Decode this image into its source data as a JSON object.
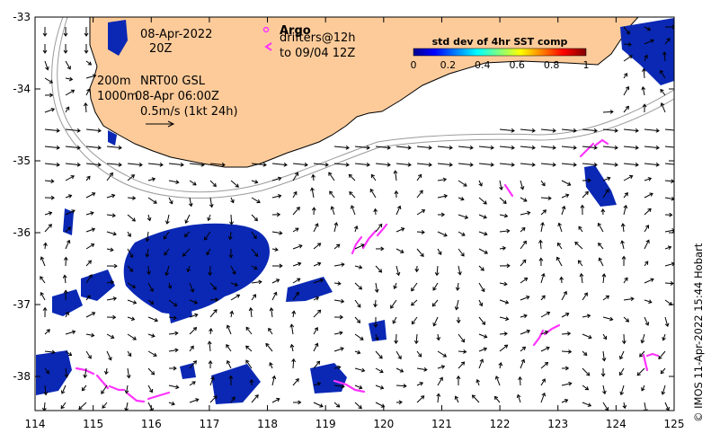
{
  "map": {
    "date": "08-Apr-2022",
    "time": "20Z",
    "isobath_200": "200m",
    "isobath_1000": "1000m",
    "product": "NRT00 GSL",
    "product_time": "08-Apr 06:00Z",
    "scale_label": "0.5m/s (1kt 24h)",
    "argo_label": "Argo",
    "drifters_label": "drifters@12h",
    "drifters_to": "to 09/04 12Z",
    "colorbar_title": "std dev of 4hr SST comp",
    "colorbar_ticks": [
      "0",
      "0.2",
      "0.4",
      "0.6",
      "0.8",
      "1"
    ],
    "x_ticks": [
      "114",
      "115",
      "116",
      "117",
      "118",
      "119",
      "120",
      "121",
      "122",
      "123",
      "124",
      "125"
    ],
    "y_ticks": [
      "-33",
      "-34",
      "-35",
      "-36",
      "-37",
      "-38"
    ],
    "credit": "© IMOS 11-Apr-2022 15:44 Hobart",
    "colors": {
      "land": "#fdcb9a",
      "sst_patch": "#0a28b4",
      "drifter": "#ff33ff",
      "isobath": "#9a9a9a"
    }
  }
}
